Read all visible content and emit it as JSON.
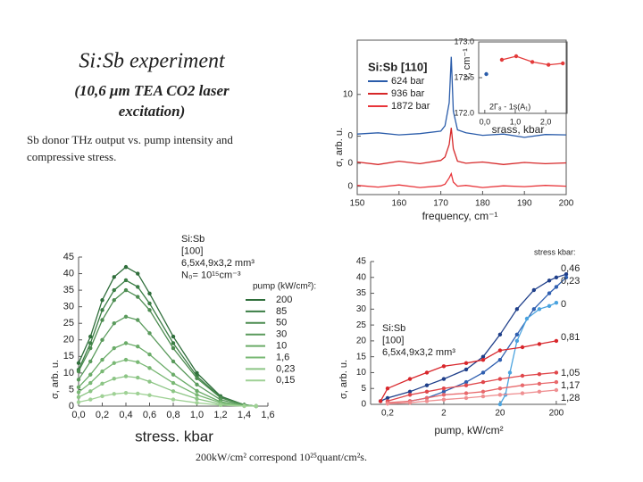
{
  "slide": {
    "title": "Si:Sb  experiment",
    "subtitle": [
      "(10,6 μm TEA CO2 laser",
      "excitation)"
    ],
    "description": [
      "Sb donor THz output vs. pump intensity and",
      "compressive stress."
    ],
    "footnote": "200kW/cm² correspond 10²⁵quant/cm²s."
  },
  "chart_data": [
    {
      "type": "line",
      "frame": true,
      "markers": false,
      "legend": "upper left",
      "legend_title": "Si:Sb  [110]",
      "xlabel": "frequency, cm⁻¹",
      "ylabel": "σ, arb. u.",
      "x": [
        150,
        155,
        160,
        165,
        170,
        171,
        172,
        172.5,
        173,
        174,
        176,
        180,
        185,
        190,
        195,
        200
      ],
      "xlim": [
        150,
        200
      ],
      "xticks": [
        150,
        160,
        170,
        180,
        190,
        200
      ],
      "ylim": [
        -14,
        23
      ],
      "yticks": [
        10,
        0,
        {
          "value": -6.5,
          "label": "0"
        },
        {
          "value": -12,
          "label": "0"
        }
      ],
      "series": [
        {
          "name": "624 bar",
          "color": "#2a5caa",
          "values": [
            0.5,
            0.8,
            0.3,
            0.6,
            1.2,
            2.5,
            8,
            19,
            6,
            1.5,
            0.8,
            0.2,
            0.5,
            -0.3,
            0.4,
            0.3
          ]
        },
        {
          "name": "936 bar",
          "color": "#d62728",
          "values": [
            -6.2,
            -6.8,
            -6.0,
            -6.6,
            -5.8,
            -5,
            -2,
            2,
            -3,
            -6,
            -6.5,
            -6.2,
            -6.8,
            -6.3,
            -6.6,
            -6.4
          ]
        },
        {
          "name": "1872 bar",
          "color": "#e8353a",
          "values": [
            -11.8,
            -12.2,
            -11.7,
            -12.3,
            -11.9,
            -11.5,
            -10,
            -9,
            -11,
            -12,
            -11.8,
            -12.3,
            -11.9,
            -12.1,
            -11.8,
            -12.0
          ]
        }
      ]
    },
    {
      "type": "line",
      "frame": true,
      "markers": true,
      "legend": "none",
      "xlabel": "srass, kbar",
      "ylabel": "ν, cm⁻¹",
      "annotations": [
        "2Γ₈ - 1s(A₁)"
      ],
      "xlim": [
        -0.2,
        2.7
      ],
      "xticks": [
        {
          "value": 0,
          "label": "0,0"
        },
        {
          "value": 1,
          "label": "1,0"
        },
        {
          "value": 2,
          "label": "2,0"
        }
      ],
      "ylim": [
        172,
        173
      ],
      "yticks": [
        {
          "value": 173,
          "label": "173.0"
        },
        172.5,
        {
          "value": 172,
          "label": "172.0"
        }
      ],
      "series": [
        {
          "color": "#e33a3a",
          "x": [
            0.56,
            1.03,
            1.56,
            2.09,
            2.56
          ],
          "values": [
            172.75,
            172.8,
            172.72,
            172.68,
            172.7
          ]
        },
        {
          "color": "#2a5caa",
          "x": [
            0.05
          ],
          "values": [
            172.55
          ]
        }
      ]
    },
    {
      "type": "line",
      "frame": false,
      "markers": true,
      "legend": "right",
      "legend_title": "pump (kW/cm²):",
      "annotations": [
        "Si:Sb",
        "[100]",
        "6,5x4,9x3,2 mm³",
        "N₀= 10¹⁵cm⁻³"
      ],
      "xlabel": "stress. kbar",
      "ylabel": "σ, arb. u.",
      "x": [
        0,
        0.1,
        0.2,
        0.3,
        0.4,
        0.5,
        0.6,
        0.8,
        1.0,
        1.2,
        1.4,
        1.5
      ],
      "xlim": [
        0,
        1.6
      ],
      "xticks": [
        {
          "value": 0,
          "label": "0,0"
        },
        {
          "value": 0.2,
          "label": "0,2"
        },
        {
          "value": 0.4,
          "label": "0,4"
        },
        {
          "value": 0.6,
          "label": "0,6"
        },
        {
          "value": 0.8,
          "label": "0,8"
        },
        {
          "value": 1.0,
          "label": "1,0"
        },
        {
          "value": 1.2,
          "label": "1,2"
        },
        {
          "value": 1.4,
          "label": "1,4"
        },
        {
          "value": 1.6,
          "label": "1,6"
        }
      ],
      "ylim": [
        0,
        45
      ],
      "yticks": [
        0,
        5,
        10,
        15,
        20,
        25,
        30,
        35,
        40,
        45
      ],
      "series": [
        {
          "name": "200",
          "color": "#2f6e3b",
          "values": [
            13,
            21,
            32,
            39,
            42,
            40,
            34,
            21,
            10,
            3,
            0.4,
            0
          ]
        },
        {
          "name": "85",
          "color": "#3a7d44",
          "values": [
            11,
            19,
            29,
            35,
            38,
            36,
            31,
            19,
            9,
            2.7,
            0.4,
            0
          ]
        },
        {
          "name": "50",
          "color": "#4c8c50",
          "values": [
            10.5,
            17.5,
            26,
            32,
            35,
            33,
            29,
            17.5,
            8.4,
            2.5,
            0.4,
            0
          ]
        },
        {
          "name": "30",
          "color": "#5a9a5c",
          "values": [
            8,
            13.5,
            20,
            25,
            27,
            26,
            22,
            13.5,
            6.5,
            1.9,
            0.3,
            0
          ]
        },
        {
          "name": "10",
          "color": "#6aab68",
          "values": [
            5.7,
            9.5,
            14,
            17.5,
            19,
            18,
            15.6,
            9.5,
            4.6,
            1.3,
            0.2,
            0
          ]
        },
        {
          "name": "1,6",
          "color": "#79b874",
          "values": [
            4.2,
            7,
            10.5,
            13,
            14,
            13.3,
            11.5,
            7,
            3.4,
            1,
            0.1,
            0
          ]
        },
        {
          "name": "0,23",
          "color": "#8cc585",
          "values": [
            2.7,
            4.5,
            6.8,
            8.3,
            9,
            8.6,
            7.4,
            4.5,
            2.2,
            0.6,
            0.1,
            0
          ]
        },
        {
          "name": "0,15",
          "color": "#9fd195",
          "values": [
            1.2,
            2,
            3,
            3.7,
            4,
            3.8,
            3.3,
            2,
            1,
            0.3,
            0,
            0
          ]
        }
      ]
    },
    {
      "type": "line",
      "frame": false,
      "markers": true,
      "xscale": "log",
      "legend": "end",
      "legend_title": "stress kbar:",
      "annotations": [
        "Si:Sb",
        "[100]",
        "6,5x4,9x3,2 mm³"
      ],
      "xlabel": "pump, kW/cm²",
      "ylabel": "σ, arb. u.",
      "xlim": [
        0.1,
        300
      ],
      "xticks": [
        {
          "value": 0.2,
          "label": "0,2"
        },
        2,
        20,
        200
      ],
      "ylim": [
        0,
        45
      ],
      "yticks": [
        0,
        5,
        10,
        15,
        20,
        25,
        30,
        35,
        40,
        45
      ],
      "series": [
        {
          "name": "0,46",
          "color": "#1f3f8a",
          "x": [
            0.15,
            0.2,
            0.5,
            1,
            2,
            5,
            10,
            20,
            40,
            80,
            150,
            200,
            300
          ],
          "values": [
            1,
            2,
            4,
            6,
            8,
            11,
            15,
            22,
            30,
            36,
            39,
            40,
            41
          ]
        },
        {
          "name": "0,23",
          "color": "#2f5fb0",
          "x": [
            0.5,
            1,
            2,
            5,
            10,
            20,
            40,
            80,
            150,
            200,
            300
          ],
          "values": [
            1,
            2,
            4,
            7,
            10,
            14,
            22,
            30,
            35,
            37,
            40
          ]
        },
        {
          "name": "0",
          "color": "#4aa3df",
          "x": [
            20,
            25,
            30,
            40,
            60,
            100,
            150,
            200
          ],
          "values": [
            0,
            3,
            10,
            20,
            27,
            30,
            31,
            32
          ]
        },
        {
          "name": "0,81",
          "color": "#d8262b",
          "x": [
            0.15,
            0.2,
            0.5,
            1,
            2,
            5,
            10,
            20,
            50,
            100,
            200
          ],
          "values": [
            1,
            5,
            8,
            10,
            12,
            13,
            14,
            17,
            18,
            19,
            20
          ]
        },
        {
          "name": "1,05",
          "color": "#e0474b",
          "x": [
            0.2,
            0.5,
            1,
            2,
            5,
            10,
            20,
            50,
            100,
            200
          ],
          "values": [
            1,
            3,
            4,
            5,
            6,
            7,
            8,
            9,
            9.5,
            10
          ]
        },
        {
          "name": "1,17",
          "color": "#e8696c",
          "x": [
            0.2,
            0.5,
            1,
            2,
            5,
            10,
            20,
            50,
            100,
            200
          ],
          "values": [
            0.5,
            1,
            2,
            3,
            3.5,
            4,
            5,
            6,
            6.5,
            7
          ]
        },
        {
          "name": "1,28",
          "color": "#ef8f91",
          "x": [
            0.2,
            0.5,
            1,
            2,
            5,
            10,
            20,
            50,
            100,
            200
          ],
          "values": [
            0.2,
            0.5,
            1,
            1.5,
            2,
            2.5,
            3,
            3.5,
            4,
            4.5
          ]
        }
      ]
    }
  ]
}
